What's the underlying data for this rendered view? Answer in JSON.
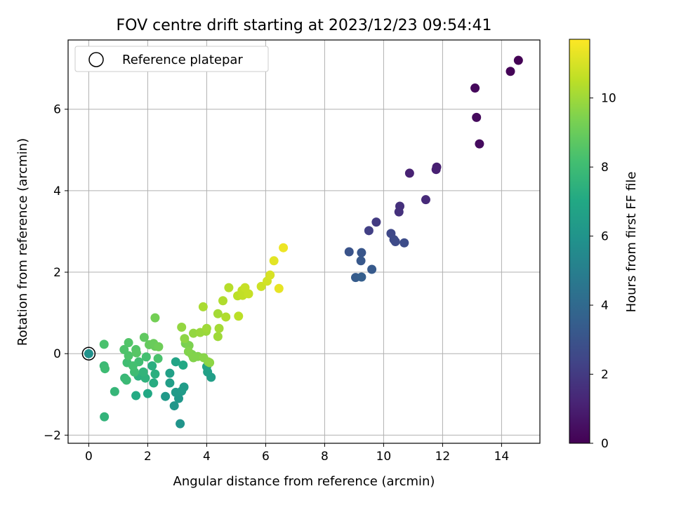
{
  "chart_data": {
    "type": "scatter",
    "title": "FOV centre drift starting at 2023/12/23 09:54:41",
    "xlabel": "Angular distance from reference (arcmin)",
    "ylabel": "Rotation from reference (arcmin)",
    "xlim": [
      -0.7,
      15.3
    ],
    "ylim": [
      -2.2,
      7.7
    ],
    "xticks": [
      0,
      2,
      4,
      6,
      8,
      10,
      12,
      14
    ],
    "yticks": [
      -2,
      0,
      2,
      4,
      6
    ],
    "grid": true,
    "legend": {
      "placement": "upper-left",
      "entries": [
        "Reference platepar"
      ]
    },
    "reference_point": {
      "x": 0,
      "y": 0
    },
    "colorbar": {
      "label": "Hours from first FF file",
      "colormap": "viridis",
      "range": [
        0,
        11.7
      ],
      "ticks": [
        0,
        2,
        4,
        6,
        8,
        10
      ]
    },
    "series": [
      {
        "columns": [
          "x",
          "y",
          "hours"
        ],
        "points": [
          [
            14.57,
            7.2,
            0.05
          ],
          [
            14.3,
            6.93,
            0.1
          ],
          [
            13.1,
            6.52,
            0.25
          ],
          [
            13.15,
            5.8,
            0.3
          ],
          [
            13.25,
            5.15,
            0.35
          ],
          [
            11.8,
            4.58,
            1.0
          ],
          [
            11.78,
            4.52,
            1.05
          ],
          [
            10.88,
            4.43,
            1.1
          ],
          [
            11.43,
            3.78,
            1.4
          ],
          [
            10.55,
            3.62,
            1.6
          ],
          [
            10.52,
            3.48,
            1.65
          ],
          [
            9.75,
            3.23,
            2.0
          ],
          [
            9.5,
            3.02,
            2.2
          ],
          [
            10.25,
            2.95,
            2.5
          ],
          [
            10.35,
            2.8,
            2.6
          ],
          [
            10.4,
            2.75,
            2.65
          ],
          [
            10.7,
            2.72,
            2.7
          ],
          [
            8.83,
            2.5,
            3.0
          ],
          [
            9.25,
            2.48,
            3.1
          ],
          [
            9.23,
            2.28,
            3.2
          ],
          [
            9.6,
            2.07,
            3.3
          ],
          [
            9.05,
            1.87,
            3.4
          ],
          [
            9.25,
            1.88,
            3.5
          ],
          [
            0.0,
            0.0,
            5.9
          ],
          [
            3.1,
            -1.72,
            6.0
          ],
          [
            2.9,
            -1.28,
            6.1
          ],
          [
            3.05,
            -1.1,
            6.2
          ],
          [
            2.6,
            -1.05,
            6.25
          ],
          [
            2.95,
            -0.95,
            6.3
          ],
          [
            3.15,
            -0.92,
            6.35
          ],
          [
            3.23,
            -0.82,
            6.4
          ],
          [
            2.75,
            -0.72,
            6.5
          ],
          [
            2.75,
            -0.48,
            6.6
          ],
          [
            4.15,
            -0.58,
            6.5
          ],
          [
            4.03,
            -0.45,
            6.6
          ],
          [
            4.0,
            -0.32,
            6.7
          ],
          [
            2.95,
            -0.2,
            6.8
          ],
          [
            3.2,
            -0.28,
            7.0
          ],
          [
            2.0,
            -0.98,
            7.0
          ],
          [
            1.6,
            -1.03,
            7.1
          ],
          [
            2.2,
            -0.72,
            7.2
          ],
          [
            2.25,
            -0.5,
            7.3
          ],
          [
            2.15,
            -0.3,
            7.3
          ],
          [
            1.68,
            -0.55,
            7.4
          ],
          [
            1.92,
            -0.6,
            7.5
          ],
          [
            1.85,
            -0.45,
            7.6
          ],
          [
            0.53,
            -1.55,
            7.6
          ],
          [
            0.88,
            -0.93,
            7.7
          ],
          [
            1.22,
            -0.6,
            7.8
          ],
          [
            1.28,
            -0.65,
            7.9
          ],
          [
            0.52,
            -0.3,
            7.9
          ],
          [
            0.55,
            -0.37,
            8.0
          ],
          [
            1.55,
            -0.45,
            8.0
          ],
          [
            1.3,
            -0.22,
            8.1
          ],
          [
            1.7,
            -0.2,
            8.1
          ],
          [
            1.5,
            -0.3,
            8.2
          ],
          [
            1.95,
            -0.08,
            8.2
          ],
          [
            2.35,
            -0.12,
            8.3
          ],
          [
            0.52,
            0.23,
            8.3
          ],
          [
            1.2,
            0.1,
            8.4
          ],
          [
            1.35,
            -0.05,
            8.4
          ],
          [
            1.6,
            0.1,
            8.5
          ],
          [
            1.35,
            0.27,
            8.5
          ],
          [
            1.62,
            0.02,
            8.6
          ],
          [
            1.88,
            0.4,
            8.8
          ],
          [
            2.05,
            0.22,
            8.9
          ],
          [
            2.25,
            0.18,
            9.0
          ],
          [
            2.2,
            0.25,
            9.0
          ],
          [
            2.37,
            0.17,
            9.1
          ],
          [
            2.25,
            0.88,
            9.2
          ],
          [
            3.28,
            0.25,
            9.3
          ],
          [
            3.4,
            0.2,
            9.4
          ],
          [
            3.5,
            -0.02,
            9.4
          ],
          [
            3.7,
            -0.07,
            9.5
          ],
          [
            3.55,
            -0.1,
            9.5
          ],
          [
            3.9,
            -0.1,
            9.6
          ],
          [
            3.38,
            0.05,
            9.5
          ],
          [
            4.05,
            -0.2,
            9.6
          ],
          [
            4.1,
            -0.22,
            9.7
          ],
          [
            3.25,
            0.37,
            9.7
          ],
          [
            3.15,
            0.65,
            9.8
          ],
          [
            3.55,
            0.5,
            9.8
          ],
          [
            3.78,
            0.52,
            9.9
          ],
          [
            3.98,
            0.55,
            9.9
          ],
          [
            4.0,
            0.62,
            10.0
          ],
          [
            4.38,
            0.42,
            10.0
          ],
          [
            4.42,
            0.62,
            10.1
          ],
          [
            4.38,
            0.98,
            10.1
          ],
          [
            3.88,
            1.15,
            10.2
          ],
          [
            4.65,
            0.9,
            10.3
          ],
          [
            4.55,
            1.3,
            10.3
          ],
          [
            4.75,
            1.62,
            10.4
          ],
          [
            5.08,
            0.92,
            10.5
          ],
          [
            5.05,
            1.42,
            10.5
          ],
          [
            5.22,
            1.43,
            10.6
          ],
          [
            5.2,
            1.55,
            10.6
          ],
          [
            5.3,
            1.62,
            10.7
          ],
          [
            5.42,
            1.47,
            10.7
          ],
          [
            5.85,
            1.65,
            10.8
          ],
          [
            6.05,
            1.78,
            10.9
          ],
          [
            6.15,
            1.93,
            11.0
          ],
          [
            6.28,
            2.28,
            11.2
          ],
          [
            6.45,
            1.6,
            11.3
          ],
          [
            6.6,
            2.6,
            11.4
          ]
        ]
      }
    ]
  }
}
